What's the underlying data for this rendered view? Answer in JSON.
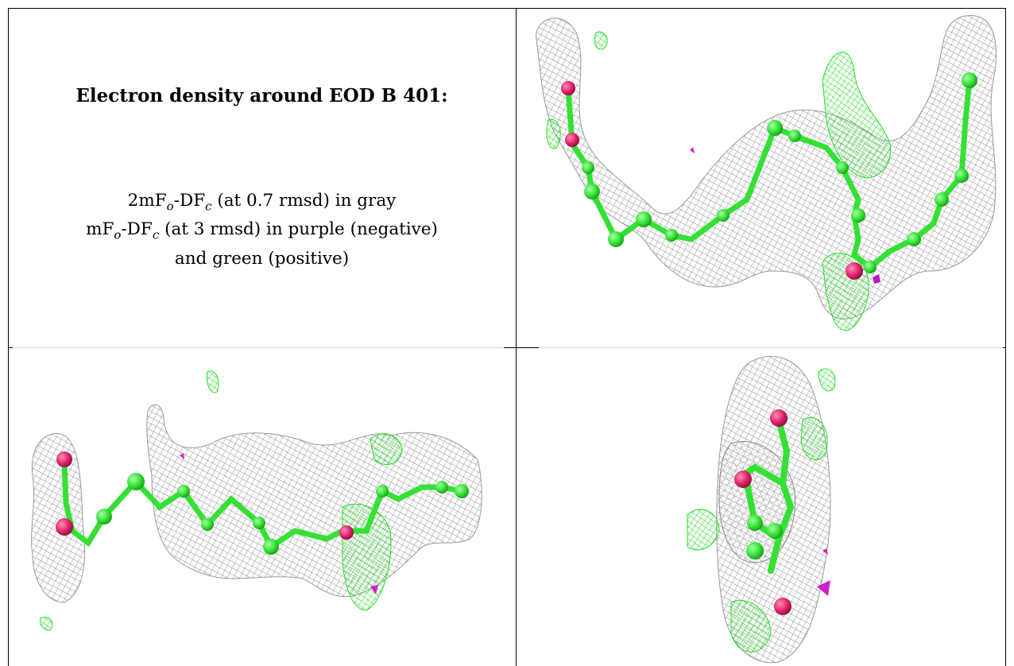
{
  "caption": {
    "title": "Electron density around EOD B 401:",
    "line1": {
      "a": "2mF",
      "a_sub": "o",
      "b": "-DF",
      "b_sub": "c",
      "c": " (at 0.7 rmsd) in gray"
    },
    "line2": {
      "a": "mF",
      "a_sub": "o",
      "b": "-DF",
      "b_sub": "c",
      "c": " (at 3 rmsd) in purple (negative)"
    },
    "line3": "and green (positive)"
  },
  "colors": {
    "mesh_gray": "#9a9a9a",
    "mesh_green": "#22e022",
    "mesh_purple": "#cc22cc",
    "ligand_carbon": "#3ce63c",
    "ligand_oxygen": "#e0206a"
  },
  "panels": [
    {
      "name": "top-right view",
      "image": "molecule rendering"
    },
    {
      "name": "bottom-left view",
      "image": "molecule rendering"
    },
    {
      "name": "bottom-right view",
      "image": "molecule rendering"
    }
  ]
}
